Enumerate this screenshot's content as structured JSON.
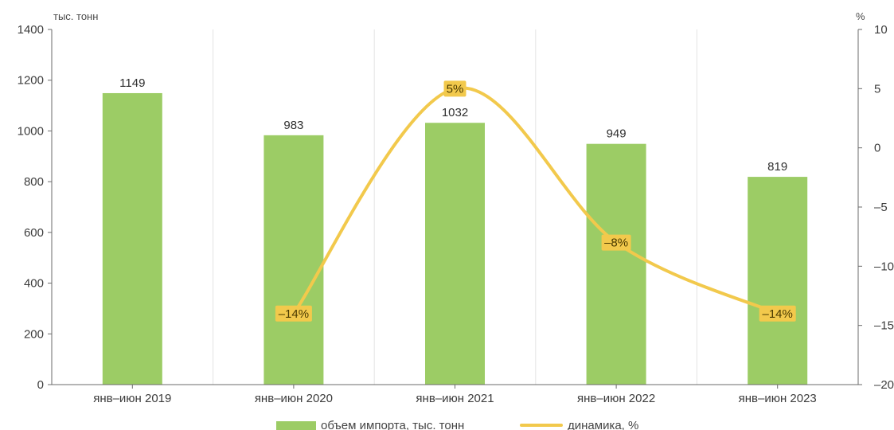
{
  "chart_data": {
    "type": "bar",
    "categories": [
      "янв–июн 2019",
      "янв–июн 2020",
      "янв–июн 2021",
      "янв–июн 2022",
      "янв–июн 2023"
    ],
    "series": [
      {
        "name": "объем импорта, тыс. тонн",
        "type": "bar",
        "axis": "left",
        "values": [
          1149,
          983,
          1032,
          949,
          819
        ],
        "labels": [
          "1149",
          "983",
          "1032",
          "949",
          "819"
        ]
      },
      {
        "name": "динамика, %",
        "type": "line",
        "axis": "right",
        "values": [
          null,
          -14,
          5,
          -8,
          -14
        ],
        "labels": [
          "",
          "–14%",
          "5%",
          "–8%",
          "–14%"
        ]
      }
    ],
    "left_axis": {
      "unit": "тыс. тонн",
      "range": [
        0,
        1400
      ],
      "ticks": [
        0,
        200,
        400,
        600,
        800,
        1000,
        1200,
        1400
      ]
    },
    "right_axis": {
      "unit": "%",
      "range": [
        -20,
        10
      ],
      "ticks": [
        -20,
        -15,
        -10,
        -5,
        0,
        5,
        10
      ],
      "tick_labels": [
        "–20",
        "–15",
        "–10",
        "–5",
        "0",
        "5",
        "10"
      ]
    },
    "grid": "vertical",
    "legend_position": "bottom",
    "colors": {
      "bar": "#9ccc65",
      "line": "#f2c94c",
      "label_bg": "#f2c94c"
    }
  }
}
